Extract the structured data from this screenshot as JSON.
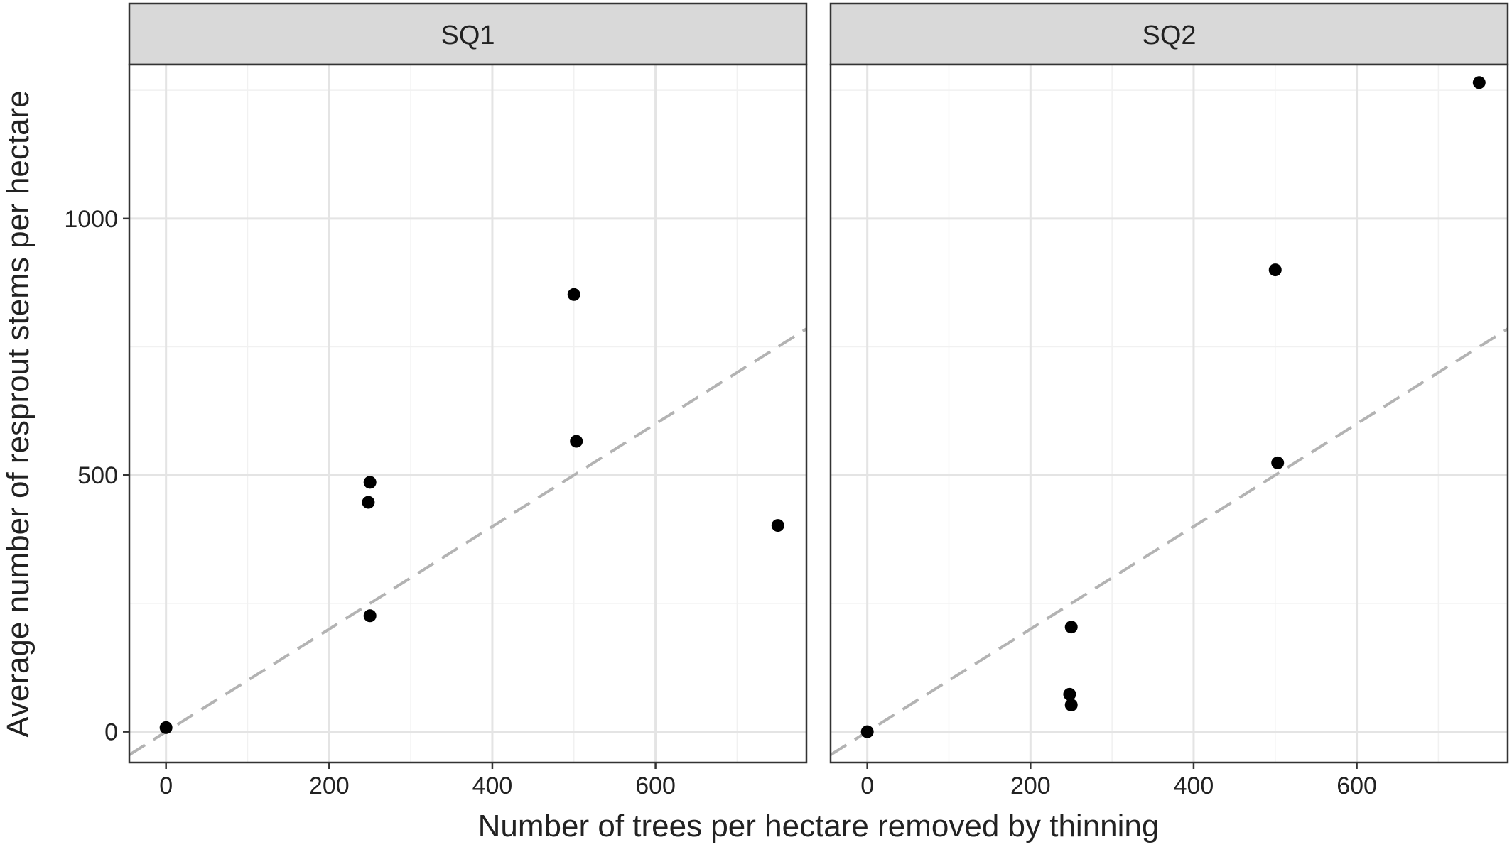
{
  "chart_data": {
    "type": "scatter",
    "xlabel": "Number of trees per hectare removed by thinning",
    "ylabel": "Average number of resprout stems per hectare",
    "xlim": [
      -45,
      785
    ],
    "ylim": [
      -60,
      1300
    ],
    "x_ticks": [
      0,
      200,
      400,
      600
    ],
    "y_ticks": [
      0,
      500,
      1000
    ],
    "grid": true,
    "reference_line": {
      "style": "dashed",
      "color": "#b3b3b3",
      "slope": 1,
      "intercept": 0
    },
    "panels": [
      {
        "label": "SQ1",
        "points": [
          {
            "x": 0,
            "y": 8
          },
          {
            "x": 248,
            "y": 447
          },
          {
            "x": 250,
            "y": 486
          },
          {
            "x": 250,
            "y": 226
          },
          {
            "x": 500,
            "y": 852
          },
          {
            "x": 503,
            "y": 566
          },
          {
            "x": 750,
            "y": 402
          }
        ]
      },
      {
        "label": "SQ2",
        "points": [
          {
            "x": 0,
            "y": 0
          },
          {
            "x": 248,
            "y": 73
          },
          {
            "x": 250,
            "y": 52
          },
          {
            "x": 250,
            "y": 204
          },
          {
            "x": 500,
            "y": 900
          },
          {
            "x": 503,
            "y": 524
          },
          {
            "x": 750,
            "y": 1265
          }
        ]
      }
    ]
  },
  "colors": {
    "points": "#000000",
    "strip_fill": "#d9d9d9",
    "panel_border": "#333333",
    "grid_major": "#e4e4e4",
    "grid_minor": "#f1f1f1",
    "reference_line": "#b3b3b3"
  }
}
